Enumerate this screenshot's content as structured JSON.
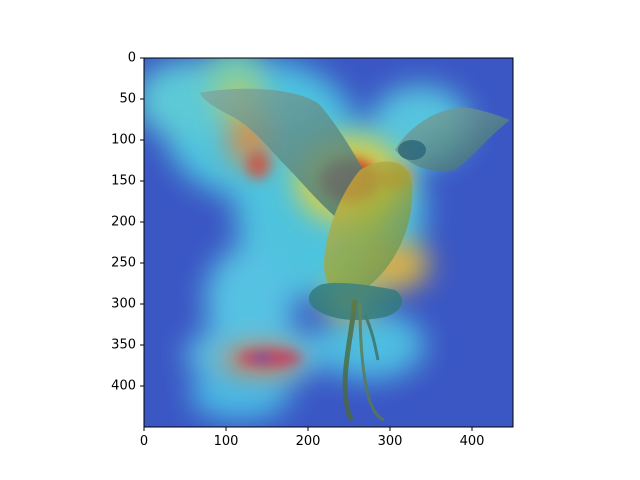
{
  "chart_data": {
    "type": "heatmap",
    "title": "",
    "xlabel": "",
    "ylabel": "",
    "xlim": [
      0,
      450
    ],
    "ylim": [
      450,
      0
    ],
    "x_ticks": [
      0,
      100,
      200,
      300,
      400
    ],
    "y_ticks": [
      0,
      50,
      100,
      150,
      200,
      250,
      300,
      350,
      400
    ],
    "x_tick_labels": [
      "0",
      "100",
      "200",
      "300",
      "400"
    ],
    "y_tick_labels": [
      "0",
      "50",
      "100",
      "150",
      "200",
      "250",
      "300",
      "350",
      "400"
    ],
    "grid": false,
    "colormap": "jet",
    "overlay": "image of a bird with spread wings overlaid with a jet-colormap attention heatmap",
    "hotspots": [
      {
        "x": 275,
        "y": 150,
        "intensity": 1.0
      },
      {
        "x": 325,
        "y": 148,
        "intensity": 0.85
      },
      {
        "x": 150,
        "y": 365,
        "intensity": 0.9
      },
      {
        "x": 115,
        "y": 135,
        "intensity": 0.7
      },
      {
        "x": 125,
        "y": 45,
        "intensity": 0.6
      },
      {
        "x": 325,
        "y": 245,
        "intensity": 0.75
      },
      {
        "x": 240,
        "y": 275,
        "intensity": 0.8
      }
    ]
  }
}
